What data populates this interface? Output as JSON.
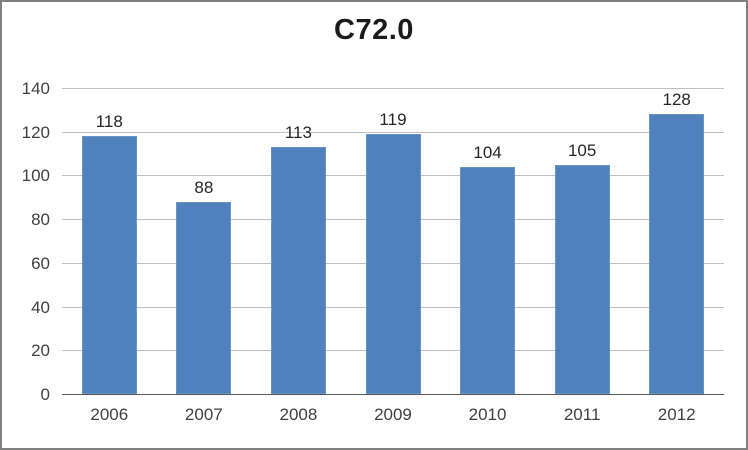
{
  "chart_data": {
    "type": "bar",
    "title": "C72.0",
    "categories": [
      "2006",
      "2007",
      "2008",
      "2009",
      "2010",
      "2011",
      "2012"
    ],
    "values": [
      118,
      88,
      113,
      119,
      104,
      105,
      128
    ],
    "xlabel": "",
    "ylabel": "",
    "ylim": [
      0,
      140
    ],
    "yticks": [
      0,
      20,
      40,
      60,
      80,
      100,
      120,
      140
    ],
    "grid": true,
    "legend_position": "none",
    "data_labels_shown": true
  },
  "colors": {
    "bar_fill": "#4F81BD",
    "bar_edge": "#6B93C6",
    "gridline": "#BFBFBF",
    "axis_line": "#595959",
    "tick_text": "#404040",
    "value_text": "#262626",
    "title_text": "#1a1a1a",
    "frame_border": "#808080",
    "background": "#FFFFFF"
  }
}
